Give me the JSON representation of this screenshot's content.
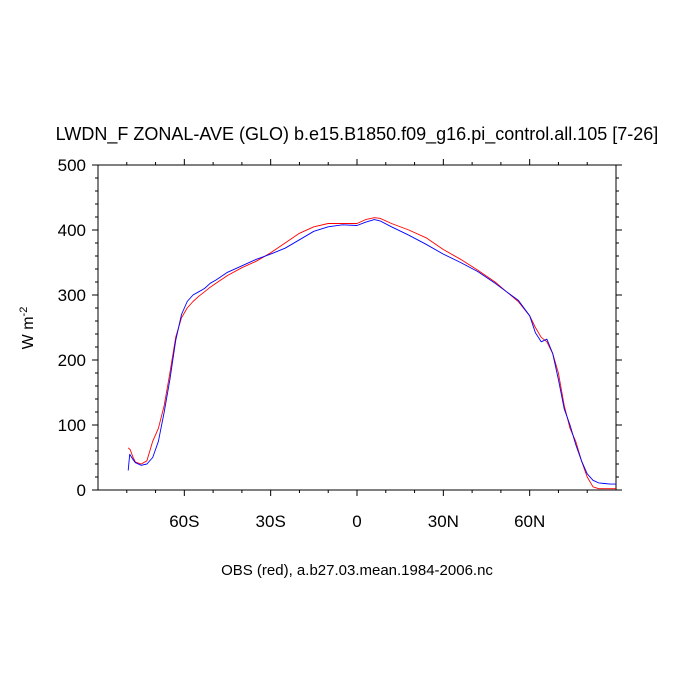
{
  "chart_data": {
    "type": "line",
    "title": "LWDN_F ZONAL-AVE (GLO) b.e15.B1850.f09_g16.pi_control.all.105 [7-26]",
    "ylabel": "W m",
    "ylabel_sup": "-2",
    "footnote": "OBS (red), a.b27.03.mean.1984-2006.nc",
    "xlim": [
      -90,
      90
    ],
    "ylim": [
      0,
      500
    ],
    "x_ticks": [
      {
        "value": -60,
        "label": "60S"
      },
      {
        "value": -30,
        "label": "30S"
      },
      {
        "value": 0,
        "label": "0"
      },
      {
        "value": 30,
        "label": "30N"
      },
      {
        "value": 60,
        "label": "60N"
      }
    ],
    "y_ticks": [
      {
        "value": 0,
        "label": "0"
      },
      {
        "value": 100,
        "label": "100"
      },
      {
        "value": 200,
        "label": "200"
      },
      {
        "value": 300,
        "label": "300"
      },
      {
        "value": 400,
        "label": "400"
      },
      {
        "value": 500,
        "label": "500"
      }
    ],
    "grid": false,
    "series": [
      {
        "color": "#ff0000",
        "x": [
          -79.5,
          -78.8,
          -77.8,
          -77,
          -75,
          -73,
          -71,
          -69,
          -67,
          -65,
          -63,
          -61,
          -59,
          -57,
          -55,
          -53,
          -51,
          -49,
          -45,
          -40,
          -35,
          -30,
          -25,
          -20,
          -15,
          -10,
          -5,
          0,
          3,
          6,
          8,
          12,
          18,
          24,
          30,
          36,
          42,
          48,
          52,
          56,
          60,
          62,
          64,
          66,
          68,
          70,
          72,
          74,
          76,
          78,
          80,
          82,
          84,
          86,
          88,
          90
        ],
        "y": [
          65,
          62,
          50,
          43,
          40,
          45,
          75,
          95,
          130,
          180,
          235,
          265,
          280,
          290,
          298,
          305,
          312,
          318,
          330,
          342,
          352,
          365,
          380,
          395,
          405,
          410,
          410,
          410,
          416,
          419,
          418,
          410,
          400,
          388,
          370,
          355,
          338,
          320,
          305,
          290,
          268,
          250,
          235,
          228,
          210,
          180,
          130,
          95,
          75,
          45,
          20,
          5,
          2,
          2,
          2,
          2
        ]
      },
      {
        "color": "#0000ff",
        "x": [
          -79.5,
          -79,
          -78,
          -77,
          -75,
          -73,
          -71,
          -69,
          -67,
          -65,
          -63,
          -61,
          -59,
          -57,
          -55,
          -53,
          -51,
          -49,
          -45,
          -40,
          -35,
          -30,
          -25,
          -20,
          -15,
          -10,
          -5,
          0,
          3,
          6,
          8,
          12,
          18,
          24,
          30,
          36,
          42,
          48,
          52,
          56,
          60,
          62,
          64,
          66,
          68,
          70,
          72,
          74,
          76,
          78,
          80,
          82,
          84,
          86,
          88,
          90
        ],
        "y": [
          30,
          55,
          48,
          42,
          38,
          40,
          50,
          75,
          120,
          170,
          230,
          270,
          290,
          300,
          305,
          310,
          318,
          323,
          335,
          345,
          355,
          363,
          372,
          385,
          398,
          405,
          408,
          407,
          412,
          416,
          414,
          405,
          392,
          378,
          363,
          350,
          336,
          318,
          305,
          292,
          268,
          242,
          228,
          232,
          210,
          170,
          125,
          100,
          70,
          45,
          25,
          15,
          11,
          10,
          9,
          9
        ]
      }
    ]
  }
}
